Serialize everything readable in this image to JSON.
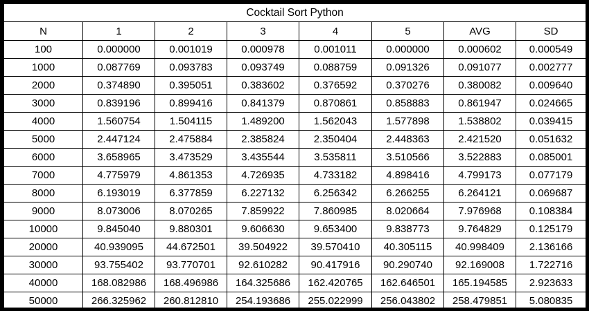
{
  "table": {
    "title": "Cocktail Sort Python",
    "columns": [
      "N",
      "1",
      "2",
      "3",
      "4",
      "5",
      "AVG",
      "SD"
    ],
    "rows": [
      [
        "100",
        "0.000000",
        "0.001019",
        "0.000978",
        "0.001011",
        "0.000000",
        "0.000602",
        "0.000549"
      ],
      [
        "1000",
        "0.087769",
        "0.093783",
        "0.093749",
        "0.088759",
        "0.091326",
        "0.091077",
        "0.002777"
      ],
      [
        "2000",
        "0.374890",
        "0.395051",
        "0.383602",
        "0.376592",
        "0.370276",
        "0.380082",
        "0.009640"
      ],
      [
        "3000",
        "0.839196",
        "0.899416",
        "0.841379",
        "0.870861",
        "0.858883",
        "0.861947",
        "0.024665"
      ],
      [
        "4000",
        "1.560754",
        "1.504115",
        "1.489200",
        "1.562043",
        "1.577898",
        "1.538802",
        "0.039415"
      ],
      [
        "5000",
        "2.447124",
        "2.475884",
        "2.385824",
        "2.350404",
        "2.448363",
        "2.421520",
        "0.051632"
      ],
      [
        "6000",
        "3.658965",
        "3.473529",
        "3.435544",
        "3.535811",
        "3.510566",
        "3.522883",
        "0.085001"
      ],
      [
        "7000",
        "4.775979",
        "4.861353",
        "4.726935",
        "4.733182",
        "4.898416",
        "4.799173",
        "0.077179"
      ],
      [
        "8000",
        "6.193019",
        "6.377859",
        "6.227132",
        "6.256342",
        "6.266255",
        "6.264121",
        "0.069687"
      ],
      [
        "9000",
        "8.073006",
        "8.070265",
        "7.859922",
        "7.860985",
        "8.020664",
        "7.976968",
        "0.108384"
      ],
      [
        "10000",
        "9.845040",
        "9.880301",
        "9.606630",
        "9.653400",
        "9.838773",
        "9.764829",
        "0.125179"
      ],
      [
        "20000",
        "40.939095",
        "44.672501",
        "39.504922",
        "39.570410",
        "40.305115",
        "40.998409",
        "2.136166"
      ],
      [
        "30000",
        "93.755402",
        "93.770701",
        "92.610282",
        "90.417916",
        "90.290740",
        "92.169008",
        "1.722716"
      ],
      [
        "40000",
        "168.082986",
        "168.496986",
        "164.325686",
        "162.420765",
        "162.646501",
        "165.194585",
        "2.923633"
      ],
      [
        "50000",
        "266.325962",
        "260.812810",
        "254.193686",
        "255.022999",
        "256.043802",
        "258.479851",
        "5.080835"
      ]
    ]
  }
}
